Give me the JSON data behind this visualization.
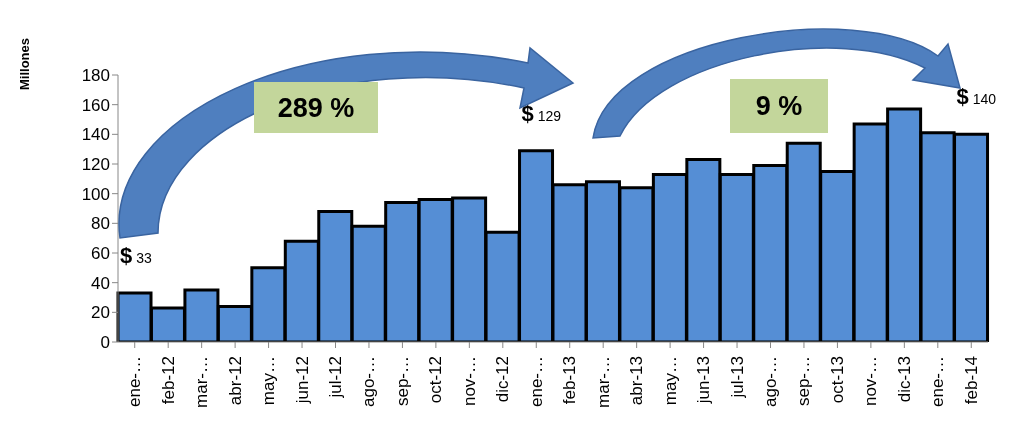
{
  "chart_data": {
    "type": "bar",
    "ylabel": "Millones",
    "categories": [
      "ene-…",
      "feb-12",
      "mar-…",
      "abr-12",
      "may…",
      "jun-12",
      "jul-12",
      "ago-…",
      "sep-…",
      "oct-12",
      "nov-…",
      "dic-12",
      "ene-…",
      "feb-13",
      "mar-…",
      "abr-13",
      "may…",
      "jun-13",
      "jul-13",
      "ago-…",
      "sep-…",
      "oct-13",
      "nov-…",
      "dic-13",
      "ene-…",
      "feb-14"
    ],
    "values": [
      33,
      23,
      35,
      24,
      50,
      68,
      88,
      78,
      94,
      96,
      97,
      74,
      129,
      106,
      108,
      104,
      113,
      123,
      113,
      119,
      134,
      115,
      147,
      157,
      141,
      140
    ],
    "value_labels": [
      "$ 33",
      null,
      null,
      null,
      null,
      null,
      null,
      null,
      null,
      null,
      null,
      null,
      "$ 129",
      null,
      null,
      null,
      null,
      null,
      null,
      null,
      null,
      null,
      null,
      null,
      null,
      "$ 140"
    ],
    "color": "#558ed5",
    "ylim": [
      0,
      180
    ],
    "yticks": [
      0,
      20,
      40,
      60,
      80,
      100,
      120,
      140,
      160,
      180
    ],
    "grid": false,
    "annotations": [
      "289 %",
      "9 %"
    ]
  }
}
